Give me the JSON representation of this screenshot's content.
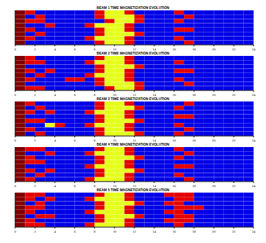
{
  "chart_data": [
    {
      "type": "heatmap",
      "title": "BEAM 1 TIME MAGNETIZATION EVOLUTION",
      "x": [
        0,
        1,
        2,
        3,
        4,
        5,
        6,
        7,
        8,
        9,
        10,
        11,
        12,
        13,
        14,
        15,
        16,
        17,
        18,
        19,
        20,
        21,
        22,
        23,
        24
      ],
      "xlim": [
        0,
        24
      ],
      "xticks": [
        0,
        2,
        4,
        6,
        8,
        10,
        12,
        14,
        16,
        18,
        20,
        22,
        24
      ],
      "tick_labels": "x",
      "color_range": [
        0,
        10
      ],
      "cells": [
        [
          10,
          9,
          1,
          1,
          1,
          1,
          1,
          1,
          9,
          6,
          6,
          9,
          1,
          1,
          1,
          1,
          9,
          1,
          1,
          1,
          1,
          1,
          1,
          1
        ],
        [
          10,
          1,
          9,
          1,
          1,
          1,
          1,
          1,
          9,
          6,
          6,
          6,
          9,
          1,
          1,
          1,
          1,
          9,
          1,
          1,
          1,
          1,
          1,
          1
        ],
        [
          10,
          9,
          9,
          1,
          1,
          1,
          1,
          1,
          1,
          9,
          6,
          6,
          9,
          1,
          1,
          1,
          9,
          1,
          1,
          1,
          1,
          1,
          1,
          1
        ],
        [
          10,
          1,
          1,
          9,
          1,
          1,
          1,
          9,
          6,
          6,
          6,
          9,
          1,
          1,
          1,
          1,
          1,
          1,
          1,
          1,
          1,
          1,
          1,
          1
        ],
        [
          10,
          9,
          1,
          1,
          1,
          1,
          1,
          1,
          9,
          6,
          6,
          9,
          1,
          1,
          1,
          1,
          9,
          9,
          1,
          1,
          1,
          1,
          1,
          1
        ],
        [
          10,
          1,
          9,
          1,
          1,
          1,
          1,
          1,
          9,
          6,
          6,
          6,
          9,
          1,
          1,
          1,
          1,
          1,
          1,
          1,
          1,
          1,
          1,
          1
        ],
        [
          10,
          9,
          1,
          1,
          1,
          1,
          1,
          9,
          6,
          6,
          6,
          9,
          1,
          1,
          1,
          1,
          9,
          1,
          1,
          1,
          1,
          1,
          1,
          1
        ],
        [
          10,
          1,
          1,
          1,
          1,
          1,
          1,
          1,
          9,
          6,
          6,
          9,
          1,
          1,
          1,
          1,
          1,
          9,
          1,
          1,
          1,
          1,
          1,
          1
        ]
      ]
    },
    {
      "type": "heatmap",
      "title": "BEAM 2 TIME MAGNETIZATION EVOLUTION",
      "x": [
        0,
        1,
        2,
        3,
        4,
        5,
        6,
        7,
        8,
        9,
        10,
        11,
        12,
        13,
        14,
        15,
        16,
        17,
        18,
        19,
        20,
        21,
        22,
        23,
        24
      ],
      "xlim": [
        0,
        24
      ],
      "xticks": [
        0,
        2,
        4,
        6,
        8,
        10,
        12,
        14,
        16,
        18,
        20,
        22,
        24
      ],
      "tick_labels": "x",
      "color_range": [
        0,
        10
      ],
      "cells": [
        [
          10,
          9,
          1,
          1,
          1,
          1,
          1,
          1,
          9,
          6,
          6,
          9,
          1,
          1,
          1,
          1,
          1,
          1,
          1,
          1,
          1,
          1,
          1,
          1
        ],
        [
          10,
          9,
          9,
          1,
          1,
          1,
          1,
          9,
          6,
          6,
          6,
          9,
          1,
          1,
          1,
          1,
          9,
          1,
          1,
          1,
          1,
          1,
          1,
          1
        ],
        [
          10,
          1,
          1,
          1,
          1,
          1,
          1,
          1,
          9,
          6,
          6,
          6,
          9,
          1,
          1,
          1,
          1,
          1,
          1,
          1,
          1,
          1,
          1,
          1
        ],
        [
          10,
          9,
          1,
          9,
          1,
          1,
          1,
          1,
          9,
          6,
          6,
          9,
          1,
          1,
          1,
          1,
          9,
          9,
          1,
          1,
          1,
          1,
          1,
          1
        ],
        [
          10,
          1,
          9,
          1,
          1,
          1,
          1,
          9,
          6,
          6,
          6,
          9,
          1,
          1,
          1,
          1,
          1,
          1,
          1,
          1,
          1,
          1,
          1,
          1
        ],
        [
          10,
          9,
          1,
          1,
          1,
          9,
          9,
          1,
          9,
          6,
          6,
          9,
          1,
          1,
          1,
          1,
          9,
          1,
          1,
          1,
          1,
          1,
          1,
          1
        ],
        [
          10,
          1,
          1,
          1,
          1,
          1,
          1,
          1,
          9,
          6,
          6,
          6,
          9,
          1,
          1,
          1,
          1,
          9,
          1,
          1,
          1,
          1,
          1,
          1
        ],
        [
          10,
          9,
          9,
          1,
          1,
          1,
          1,
          1,
          1,
          9,
          6,
          6,
          9,
          1,
          1,
          1,
          1,
          1,
          1,
          1,
          1,
          1,
          1,
          1
        ]
      ]
    },
    {
      "type": "heatmap",
      "title": "BEAM 3 TIME MAGNETIZATION EVOLUTION",
      "x": [
        0,
        1,
        2,
        3,
        4,
        5,
        6,
        7,
        8,
        9,
        10,
        11,
        12,
        13,
        14,
        15,
        16,
        17,
        18,
        19,
        20,
        21,
        22,
        23,
        24
      ],
      "xlim": [
        0,
        24
      ],
      "xticks": [
        0,
        2,
        4,
        6,
        8,
        10,
        12,
        14,
        16,
        18,
        20,
        22,
        24
      ],
      "tick_labels": "x",
      "color_range": [
        0,
        10
      ],
      "cells": [
        [
          10,
          9,
          1,
          1,
          1,
          1,
          1,
          1,
          9,
          6,
          6,
          9,
          1,
          1,
          1,
          1,
          1,
          9,
          1,
          1,
          1,
          1,
          1,
          1
        ],
        [
          10,
          1,
          9,
          1,
          1,
          1,
          1,
          1,
          9,
          6,
          6,
          6,
          9,
          1,
          1,
          1,
          9,
          1,
          1,
          1,
          1,
          1,
          1,
          1
        ],
        [
          10,
          9,
          1,
          9,
          1,
          1,
          1,
          9,
          6,
          6,
          6,
          9,
          1,
          1,
          1,
          1,
          1,
          1,
          1,
          1,
          1,
          1,
          1,
          1
        ],
        [
          10,
          1,
          1,
          1,
          1,
          1,
          1,
          1,
          9,
          6,
          6,
          9,
          1,
          1,
          1,
          1,
          9,
          9,
          1,
          1,
          1,
          1,
          1,
          1
        ],
        [
          10,
          9,
          9,
          1,
          1,
          1,
          1,
          1,
          9,
          6,
          6,
          6,
          9,
          1,
          1,
          1,
          1,
          1,
          1,
          1,
          1,
          1,
          1,
          1
        ],
        [
          10,
          1,
          1,
          6,
          9,
          1,
          1,
          9,
          6,
          6,
          6,
          9,
          1,
          1,
          1,
          1,
          9,
          1,
          1,
          1,
          1,
          1,
          1,
          1
        ],
        [
          10,
          9,
          1,
          1,
          1,
          1,
          1,
          1,
          9,
          6,
          6,
          9,
          1,
          1,
          1,
          1,
          1,
          9,
          1,
          1,
          1,
          1,
          1,
          1
        ],
        [
          10,
          1,
          9,
          1,
          1,
          1,
          1,
          1,
          9,
          6,
          6,
          6,
          9,
          1,
          1,
          1,
          9,
          1,
          1,
          1,
          1,
          1,
          1,
          1
        ]
      ]
    },
    {
      "type": "heatmap",
      "title": "BEAM 4 TIME MAGNETIZATION EVOLUTION",
      "x": [
        0,
        1,
        2,
        3,
        4,
        5,
        6,
        7,
        8,
        9,
        10,
        11,
        12,
        13,
        14,
        15,
        16,
        17,
        18,
        19,
        20,
        21,
        22,
        23,
        24
      ],
      "xlim": [
        0,
        24
      ],
      "xticks": [
        0,
        2,
        4,
        6,
        8,
        10,
        12,
        14,
        16,
        18,
        20,
        22,
        24
      ],
      "tick_labels": "x",
      "color_range": [
        0,
        10
      ],
      "cells": [
        [
          10,
          9,
          9,
          1,
          1,
          1,
          1,
          1,
          9,
          6,
          6,
          9,
          1,
          1,
          1,
          1,
          9,
          1,
          1,
          1,
          1,
          1,
          1,
          1
        ],
        [
          10,
          1,
          1,
          9,
          1,
          1,
          1,
          9,
          6,
          6,
          6,
          9,
          1,
          1,
          1,
          1,
          1,
          9,
          1,
          1,
          1,
          1,
          1,
          1
        ],
        [
          10,
          9,
          1,
          1,
          1,
          1,
          1,
          1,
          9,
          6,
          6,
          6,
          9,
          1,
          1,
          1,
          9,
          1,
          1,
          1,
          1,
          1,
          1,
          1
        ],
        [
          10,
          9,
          9,
          1,
          1,
          1,
          1,
          1,
          9,
          6,
          6,
          9,
          1,
          1,
          1,
          1,
          1,
          1,
          1,
          1,
          1,
          1,
          1,
          1
        ],
        [
          10,
          1,
          1,
          1,
          1,
          1,
          1,
          9,
          6,
          6,
          6,
          9,
          1,
          1,
          1,
          1,
          9,
          9,
          1,
          1,
          1,
          1,
          1,
          1
        ],
        [
          10,
          9,
          1,
          9,
          1,
          1,
          1,
          1,
          9,
          6,
          6,
          6,
          9,
          1,
          1,
          1,
          1,
          1,
          1,
          1,
          1,
          1,
          1,
          1
        ],
        [
          10,
          1,
          9,
          1,
          1,
          1,
          1,
          1,
          9,
          6,
          6,
          9,
          1,
          1,
          1,
          1,
          9,
          1,
          1,
          1,
          1,
          1,
          1,
          1
        ],
        [
          10,
          9,
          1,
          1,
          1,
          1,
          1,
          9,
          6,
          6,
          6,
          9,
          1,
          1,
          1,
          1,
          1,
          9,
          1,
          1,
          1,
          1,
          1,
          1
        ]
      ]
    },
    {
      "type": "heatmap",
      "title": "BEAM 5 TIME MAGNETIZATION EVOLUTION",
      "x": [
        0,
        1,
        2,
        3,
        4,
        5,
        6,
        7,
        8,
        9,
        10,
        11,
        12,
        13,
        14,
        15,
        16,
        17,
        18,
        19,
        20,
        21,
        22,
        23,
        24
      ],
      "xlim": [
        0,
        24
      ],
      "xticks": [
        0,
        2,
        4,
        6,
        8,
        10,
        12,
        14,
        16,
        18,
        20,
        22,
        24
      ],
      "tick_labels": "x",
      "color_range": [
        0,
        10
      ],
      "cells": [
        [
          10,
          9,
          9,
          1,
          1,
          1,
          1,
          1,
          9,
          6,
          6,
          9,
          1,
          1,
          1,
          9,
          9,
          9,
          1,
          1,
          1,
          1,
          1,
          1
        ],
        [
          10,
          9,
          1,
          9,
          1,
          1,
          1,
          9,
          6,
          6,
          6,
          9,
          1,
          1,
          1,
          1,
          9,
          9,
          1,
          1,
          1,
          1,
          1,
          1
        ],
        [
          10,
          1,
          9,
          1,
          1,
          1,
          1,
          1,
          9,
          6,
          6,
          6,
          9,
          1,
          1,
          9,
          9,
          1,
          1,
          1,
          1,
          1,
          1,
          1
        ],
        [
          10,
          9,
          9,
          1,
          1,
          1,
          1,
          1,
          9,
          6,
          6,
          9,
          1,
          1,
          1,
          1,
          9,
          9,
          9,
          1,
          1,
          1,
          1,
          1
        ],
        [
          10,
          9,
          1,
          1,
          1,
          1,
          1,
          9,
          6,
          6,
          6,
          9,
          1,
          1,
          1,
          9,
          9,
          1,
          1,
          1,
          1,
          1,
          1,
          1
        ],
        [
          10,
          1,
          9,
          9,
          1,
          1,
          1,
          1,
          9,
          6,
          6,
          6,
          9,
          1,
          1,
          1,
          9,
          9,
          1,
          1,
          1,
          1,
          1,
          1
        ],
        [
          10,
          9,
          1,
          1,
          1,
          1,
          1,
          1,
          9,
          6,
          6,
          9,
          1,
          1,
          1,
          9,
          9,
          9,
          1,
          1,
          1,
          1,
          1,
          1
        ],
        [
          10,
          9,
          9,
          1,
          1,
          1,
          1,
          9,
          6,
          6,
          6,
          9,
          1,
          1,
          1,
          1,
          9,
          1,
          1,
          1,
          1,
          1,
          1,
          1
        ]
      ]
    }
  ]
}
